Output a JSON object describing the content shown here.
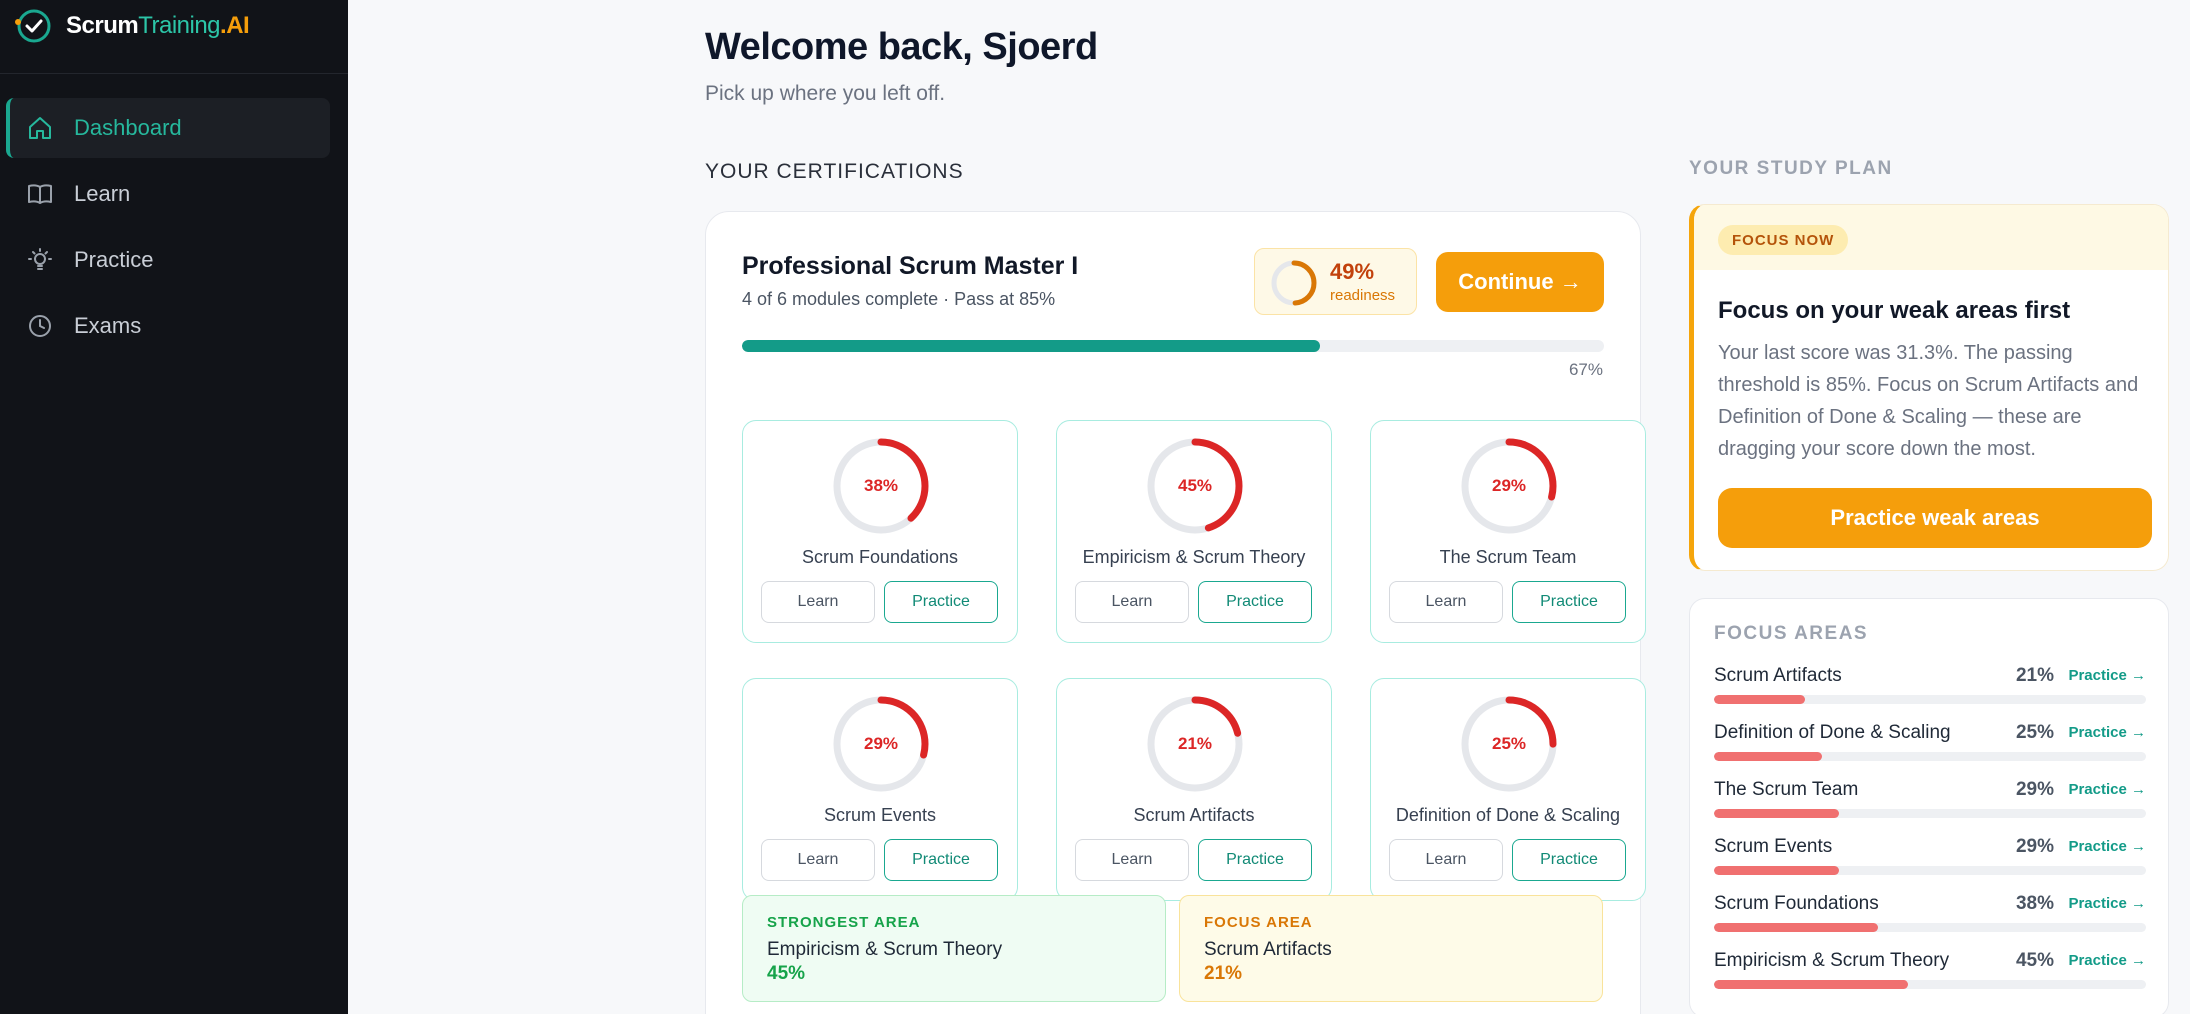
{
  "brand": {
    "part1": "Scrum",
    "part2": "Training",
    "part3": ".AI"
  },
  "sidebar": {
    "items": [
      {
        "label": "Dashboard",
        "icon": "home-icon",
        "active": true
      },
      {
        "label": "Learn",
        "icon": "book-icon",
        "active": false
      },
      {
        "label": "Practice",
        "icon": "lightbulb-icon",
        "active": false
      },
      {
        "label": "Exams",
        "icon": "clock-icon",
        "active": false
      }
    ]
  },
  "header": {
    "welcome": "Welcome back, Sjoerd",
    "subtitle": "Pick up where you left off."
  },
  "certifications": {
    "section_title": "YOUR CERTIFICATIONS",
    "cert": {
      "name": "Professional Scrum Master I",
      "meta": "4 of 6 modules complete · Pass at 85%",
      "readiness_value": "49%",
      "readiness_fraction": 0.49,
      "readiness_label": "readiness",
      "continue_label": "Continue →",
      "progress_fraction": 0.67,
      "progress_label": "67%"
    },
    "modules": [
      {
        "name": "Scrum Foundations",
        "score_label": "38%",
        "score": 0.38,
        "learn_label": "Learn",
        "practice_label": "Practice"
      },
      {
        "name": "Empiricism & Scrum Theory",
        "score_label": "45%",
        "score": 0.45,
        "learn_label": "Learn",
        "practice_label": "Practice"
      },
      {
        "name": "The Scrum Team",
        "score_label": "29%",
        "score": 0.29,
        "learn_label": "Learn",
        "practice_label": "Practice"
      },
      {
        "name": "Scrum Events",
        "score_label": "29%",
        "score": 0.29,
        "learn_label": "Learn",
        "practice_label": "Practice"
      },
      {
        "name": "Scrum Artifacts",
        "score_label": "21%",
        "score": 0.21,
        "learn_label": "Learn",
        "practice_label": "Practice"
      },
      {
        "name": "Definition of Done & Scaling",
        "score_label": "25%",
        "score": 0.25,
        "learn_label": "Learn",
        "practice_label": "Practice"
      }
    ],
    "strongest": {
      "label": "STRONGEST AREA",
      "name": "Empiricism & Scrum Theory",
      "value": "45%"
    },
    "focus": {
      "label": "FOCUS AREA",
      "name": "Scrum Artifacts",
      "value": "21%"
    }
  },
  "study_plan": {
    "title": "YOUR STUDY PLAN",
    "badge": "FOCUS NOW",
    "heading": "Focus on your weak areas first",
    "body": "Your last score was 31.3%. The passing threshold is 85%. Focus on Scrum Artifacts and Definition of Done & Scaling — these are dragging your score down the most.",
    "button_label": "Practice weak areas"
  },
  "focus_areas": {
    "title": "FOCUS AREAS",
    "link_label": "Practice →",
    "rows": [
      {
        "name": "Scrum Artifacts",
        "pct_label": "21%",
        "pct": 0.21
      },
      {
        "name": "Definition of Done & Scaling",
        "pct_label": "25%",
        "pct": 0.25
      },
      {
        "name": "The Scrum Team",
        "pct_label": "29%",
        "pct": 0.29
      },
      {
        "name": "Scrum Events",
        "pct_label": "29%",
        "pct": 0.29
      },
      {
        "name": "Scrum Foundations",
        "pct_label": "38%",
        "pct": 0.38
      },
      {
        "name": "Empiricism & Scrum Theory",
        "pct_label": "45%",
        "pct": 0.45
      }
    ]
  },
  "colors": {
    "accent_teal": "#139b88",
    "accent_orange": "#f59e0b",
    "score_red": "#dc2626",
    "sidebar_bg": "#111318"
  }
}
